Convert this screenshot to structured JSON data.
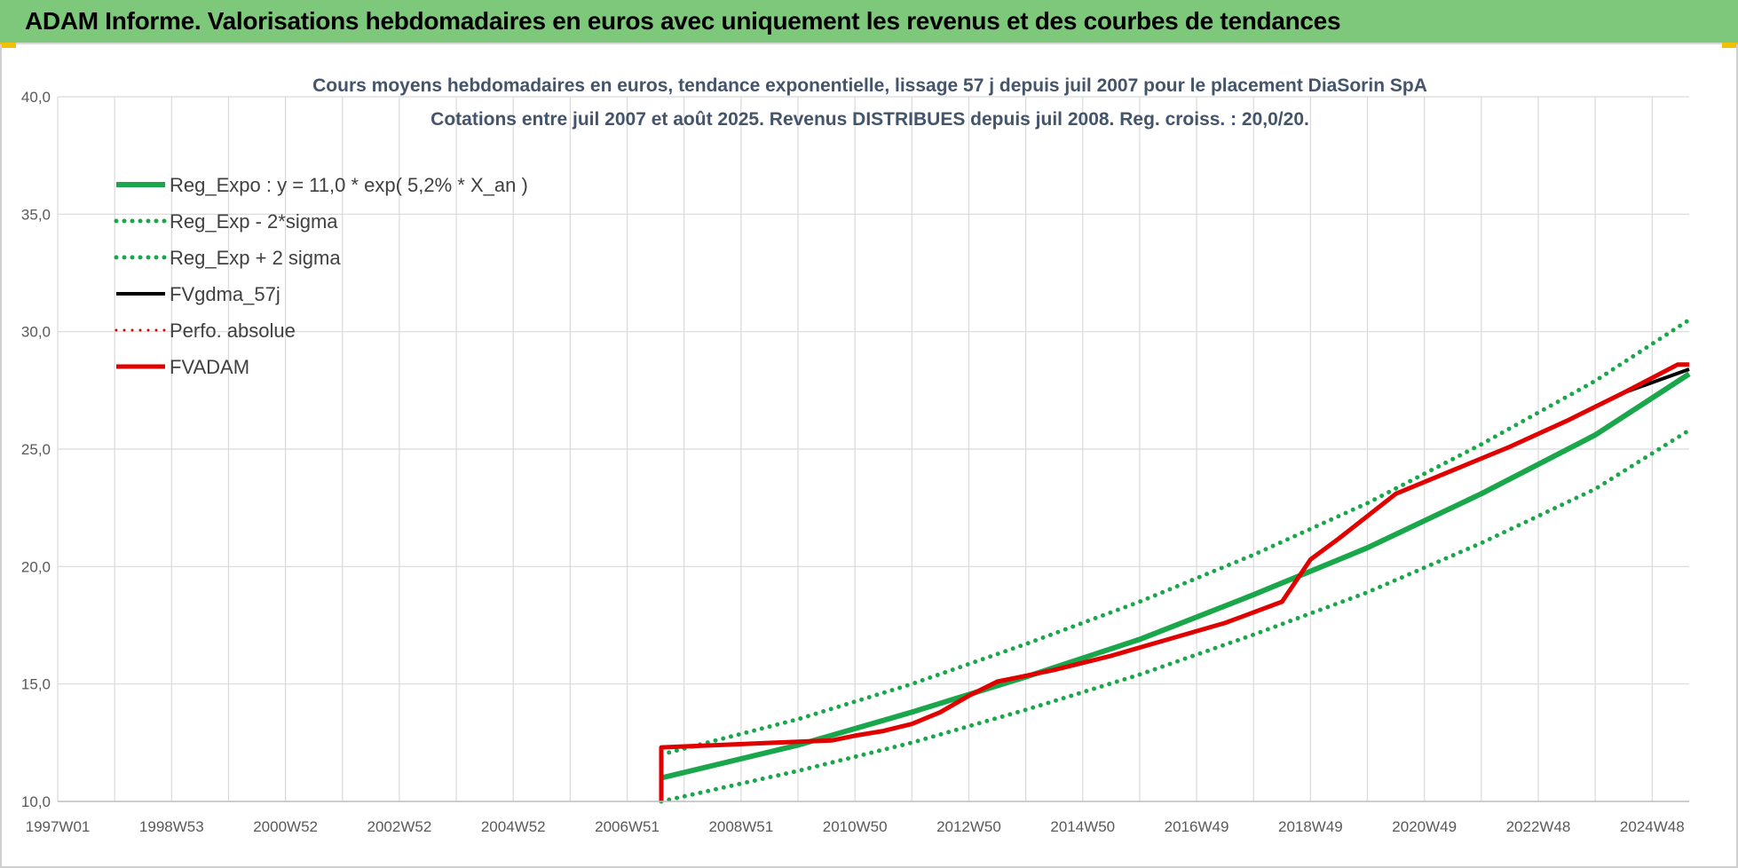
{
  "header": {
    "title": "ADAM Informe. Valorisations hebdomadaires en euros avec uniquement les revenus et des courbes de tendances"
  },
  "colors": {
    "header_bg": "#7dc87a",
    "reg_expo": "#1aa64a",
    "reg_bounds": "#1aa64a",
    "fvgdma": "#000000",
    "perfo": "#e00000",
    "fvadam": "#e00000"
  },
  "chart_data": {
    "type": "line",
    "title_lines": [
      "Cours moyens hebdomadaires en euros, tendance exponentielle, lissage 57 j depuis juil 2007 pour le placement DiaSorin SpA",
      "Cotations entre juil 2007 et août 2025. Revenus DISTRIBUES depuis juil 2008. Reg. croiss. : 20,0/20."
    ],
    "xlabel": "",
    "ylabel": "",
    "x_unit": "year",
    "xlim": [
      1997.0,
      2025.65
    ],
    "ylim": [
      10,
      40
    ],
    "y_ticks": [
      "10,0",
      "15,0",
      "20,0",
      "25,0",
      "30,0",
      "35,0",
      "40,0"
    ],
    "x_ticks": [
      {
        "label": "1997W01",
        "x": 1997.0
      },
      {
        "label": "1998W53",
        "x": 1999.0
      },
      {
        "label": "2000W52",
        "x": 2001.0
      },
      {
        "label": "2002W52",
        "x": 2003.0
      },
      {
        "label": "2004W52",
        "x": 2005.0
      },
      {
        "label": "2006W51",
        "x": 2007.0
      },
      {
        "label": "2008W51",
        "x": 2009.0
      },
      {
        "label": "2010W50",
        "x": 2011.0
      },
      {
        "label": "2012W50",
        "x": 2013.0
      },
      {
        "label": "2014W50",
        "x": 2015.0
      },
      {
        "label": "2016W49",
        "x": 2017.0
      },
      {
        "label": "2018W49",
        "x": 2019.0
      },
      {
        "label": "2020W49",
        "x": 2021.0
      },
      {
        "label": "2022W48",
        "x": 2023.0
      },
      {
        "label": "2024W48",
        "x": 2025.0
      }
    ],
    "grid": true,
    "legend_position": "top-left",
    "legend": [
      {
        "label": "Reg_Expo : y = 11,0 * exp( 5,2% *  X_an )",
        "style": "solid",
        "color_key": "reg_expo",
        "width": 6
      },
      {
        "label": "Reg_Exp - 2*sigma",
        "style": "dotted",
        "color_key": "reg_bounds",
        "width": 5
      },
      {
        "label": "Reg_Exp + 2 sigma",
        "style": "dotted",
        "color_key": "reg_bounds",
        "width": 5
      },
      {
        "label": "FVgdma_57j",
        "style": "solid",
        "color_key": "fvgdma",
        "width": 4
      },
      {
        "label": "Perfo. absolue",
        "style": "dotted",
        "color_key": "perfo",
        "width": 3
      },
      {
        "label": "FVADAM",
        "style": "solid",
        "color_key": "fvadam",
        "width": 5
      }
    ],
    "series": [
      {
        "name": "Reg_Expo : y = 11,0 * exp( 5,2% *  X_an )",
        "x": [
          2007.6,
          2010.0,
          2012.0,
          2014.0,
          2016.0,
          2018.0,
          2020.0,
          2022.0,
          2024.0,
          2025.65
        ],
        "y": [
          11.0,
          12.4,
          13.8,
          15.3,
          16.9,
          18.8,
          20.8,
          23.1,
          25.6,
          28.2
        ]
      },
      {
        "name": "Reg_Exp - 2*sigma",
        "x": [
          2007.6,
          2010.0,
          2012.0,
          2014.0,
          2016.0,
          2018.0,
          2020.0,
          2022.0,
          2024.0,
          2025.65
        ],
        "y": [
          10.0,
          11.3,
          12.5,
          13.9,
          15.4,
          17.1,
          18.9,
          21.0,
          23.3,
          25.8
        ]
      },
      {
        "name": "Reg_Exp + 2 sigma",
        "x": [
          2007.6,
          2010.0,
          2012.0,
          2014.0,
          2016.0,
          2018.0,
          2020.0,
          2022.0,
          2024.0,
          2025.65
        ],
        "y": [
          12.0,
          13.5,
          15.0,
          16.7,
          18.5,
          20.5,
          22.7,
          25.2,
          27.9,
          30.5
        ]
      },
      {
        "name": "FVADAM",
        "x": [
          2007.6,
          2007.6,
          2008.6,
          2009.6,
          2010.6,
          2011.0,
          2011.5,
          2012.0,
          2012.5,
          2013.0,
          2013.5,
          2014.5,
          2015.5,
          2016.5,
          2017.5,
          2018.5,
          2019.0,
          2019.5,
          2020.5,
          2021.5,
          2022.5,
          2023.5,
          2024.5,
          2025.45,
          2025.65
        ],
        "y": [
          10.0,
          12.3,
          12.4,
          12.5,
          12.6,
          12.8,
          13.0,
          13.3,
          13.8,
          14.5,
          15.1,
          15.6,
          16.2,
          16.9,
          17.6,
          18.5,
          20.3,
          21.2,
          23.1,
          24.1,
          25.1,
          26.2,
          27.4,
          28.6,
          28.6
        ]
      },
      {
        "name": "FVgdma_57j",
        "x": [
          2007.6,
          2008.6,
          2009.6,
          2010.6,
          2011.0,
          2011.5,
          2012.0,
          2012.5,
          2013.0,
          2013.5,
          2014.5,
          2015.5,
          2016.5,
          2017.5,
          2018.5,
          2019.0,
          2019.5,
          2020.5,
          2021.5,
          2022.5,
          2023.5,
          2024.5,
          2025.65
        ],
        "y": [
          12.3,
          12.4,
          12.5,
          12.6,
          12.8,
          13.0,
          13.3,
          13.8,
          14.5,
          15.1,
          15.6,
          16.2,
          16.9,
          17.6,
          18.5,
          20.3,
          21.2,
          23.1,
          24.1,
          25.1,
          26.2,
          27.4,
          28.4
        ]
      }
    ]
  }
}
